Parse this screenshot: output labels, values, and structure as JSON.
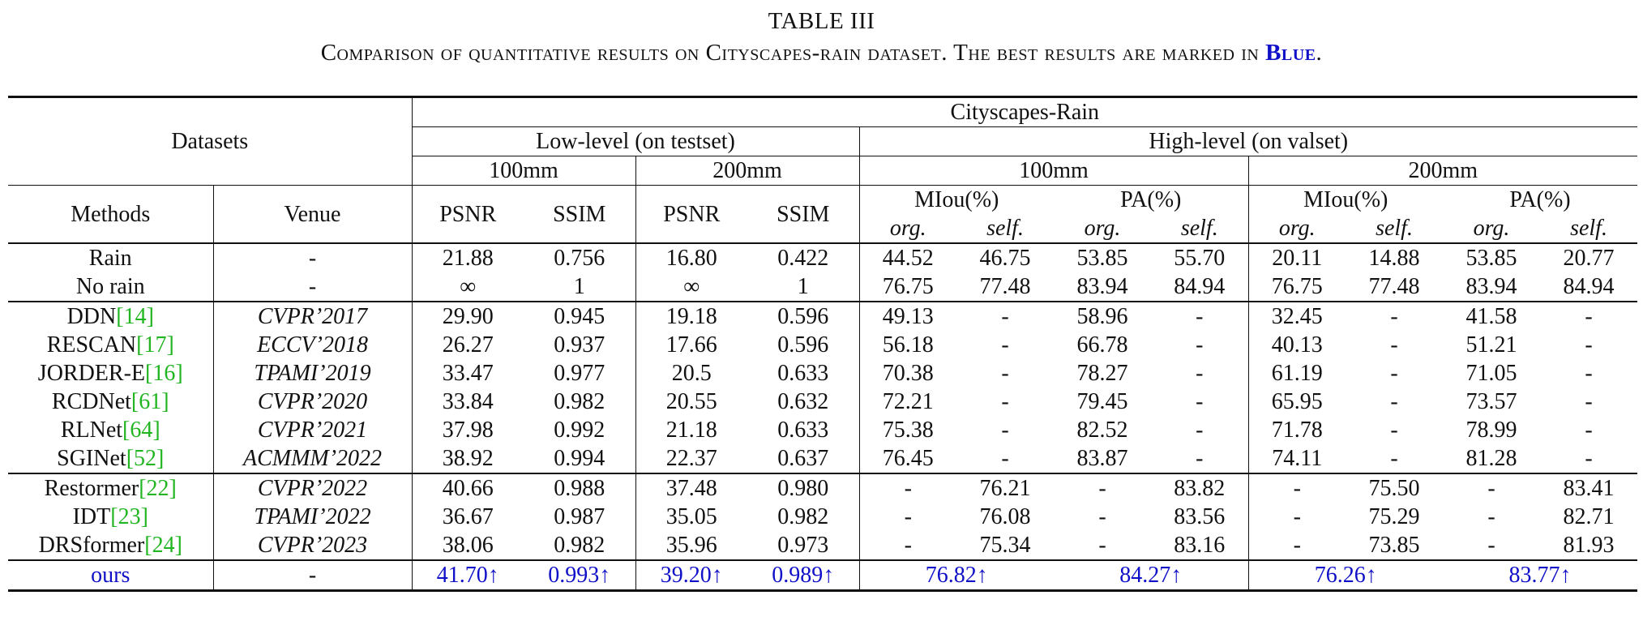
{
  "caption": {
    "title": "TABLE III",
    "subtitle_text": "Comparison of quantitative results on Cityscapes-rain dataset. The best results are marked in",
    "subtitle_best": "Blue",
    "subtitle_end": "."
  },
  "header": {
    "datasets": "Datasets",
    "dataset_name": "Cityscapes-Rain",
    "low_level": "Low-level (on testset)",
    "high_level": "High-level (on valset)",
    "mm100": "100mm",
    "mm200": "200mm",
    "methods": "Methods",
    "venue": "Venue",
    "psnr": "PSNR",
    "ssim": "SSIM",
    "miou": "MIou(%)",
    "pa": "PA(%)",
    "org": "org.",
    "self": "self."
  },
  "rows": [
    {
      "method": "Rain",
      "ref": "",
      "venue": "-",
      "v": [
        "21.88",
        "0.756",
        "16.80",
        "0.422",
        "44.52",
        "46.75",
        "53.85",
        "55.70",
        "20.11",
        "14.88",
        "53.85",
        "20.77"
      ]
    },
    {
      "method": "No rain",
      "ref": "",
      "venue": "-",
      "v": [
        "∞",
        "1",
        "∞",
        "1",
        "76.75",
        "77.48",
        "83.94",
        "84.94",
        "76.75",
        "77.48",
        "83.94",
        "84.94"
      ]
    },
    {
      "method": "DDN",
      "ref": "[14]",
      "venue": "CVPR’2017",
      "v": [
        "29.90",
        "0.945",
        "19.18",
        "0.596",
        "49.13",
        "-",
        "58.96",
        "-",
        "32.45",
        "-",
        "41.58",
        "-"
      ]
    },
    {
      "method": "RESCAN",
      "ref": "[17]",
      "venue": "ECCV’2018",
      "v": [
        "26.27",
        "0.937",
        "17.66",
        "0.596",
        "56.18",
        "-",
        "66.78",
        "-",
        "40.13",
        "-",
        "51.21",
        "-"
      ]
    },
    {
      "method": "JORDER-E",
      "ref": "[16]",
      "venue": "TPAMI’2019",
      "v": [
        "33.47",
        "0.977",
        "20.5",
        "0.633",
        "70.38",
        "-",
        "78.27",
        "-",
        "61.19",
        "-",
        "71.05",
        "-"
      ]
    },
    {
      "method": "RCDNet",
      "ref": "[61]",
      "venue": "CVPR’2020",
      "v": [
        "33.84",
        "0.982",
        "20.55",
        "0.632",
        "72.21",
        "-",
        "79.45",
        "-",
        "65.95",
        "-",
        "73.57",
        "-"
      ]
    },
    {
      "method": "RLNet",
      "ref": "[64]",
      "venue": "CVPR’2021",
      "v": [
        "37.98",
        "0.992",
        "21.18",
        "0.633",
        "75.38",
        "-",
        "82.52",
        "-",
        "71.78",
        "-",
        "78.99",
        "-"
      ]
    },
    {
      "method": "SGINet",
      "ref": "[52]",
      "venue": "ACMMM’2022",
      "v": [
        "38.92",
        "0.994",
        "22.37",
        "0.637",
        "76.45",
        "-",
        "83.87",
        "-",
        "74.11",
        "-",
        "81.28",
        "-"
      ]
    },
    {
      "method": "Restormer",
      "ref": "[22]",
      "venue": "CVPR’2022",
      "v": [
        "40.66",
        "0.988",
        "37.48",
        "0.980",
        "-",
        "76.21",
        "-",
        "83.82",
        "-",
        "75.50",
        "-",
        "83.41"
      ]
    },
    {
      "method": "IDT",
      "ref": "[23]",
      "venue": "TPAMI’2022",
      "v": [
        "36.67",
        "0.987",
        "35.05",
        "0.982",
        "-",
        "76.08",
        "-",
        "83.56",
        "-",
        "75.29",
        "-",
        "82.71"
      ]
    },
    {
      "method": "DRSformer",
      "ref": "[24]",
      "venue": "CVPR’2023",
      "v": [
        "38.06",
        "0.982",
        "35.96",
        "0.973",
        "-",
        "75.34",
        "-",
        "83.16",
        "-",
        "73.85",
        "-",
        "81.93"
      ]
    }
  ],
  "ours": {
    "method": "ours",
    "venue": "-",
    "psnr100": "41.70↑",
    "ssim100": "0.993↑",
    "psnr200": "39.20↑",
    "ssim200": "0.989↑",
    "miou100": "76.82↑",
    "pa100": "84.27↑",
    "miou200": "76.26↑",
    "pa200": "83.77↑"
  },
  "colors": {
    "best": "#1010c8",
    "reference": "#22b522"
  }
}
